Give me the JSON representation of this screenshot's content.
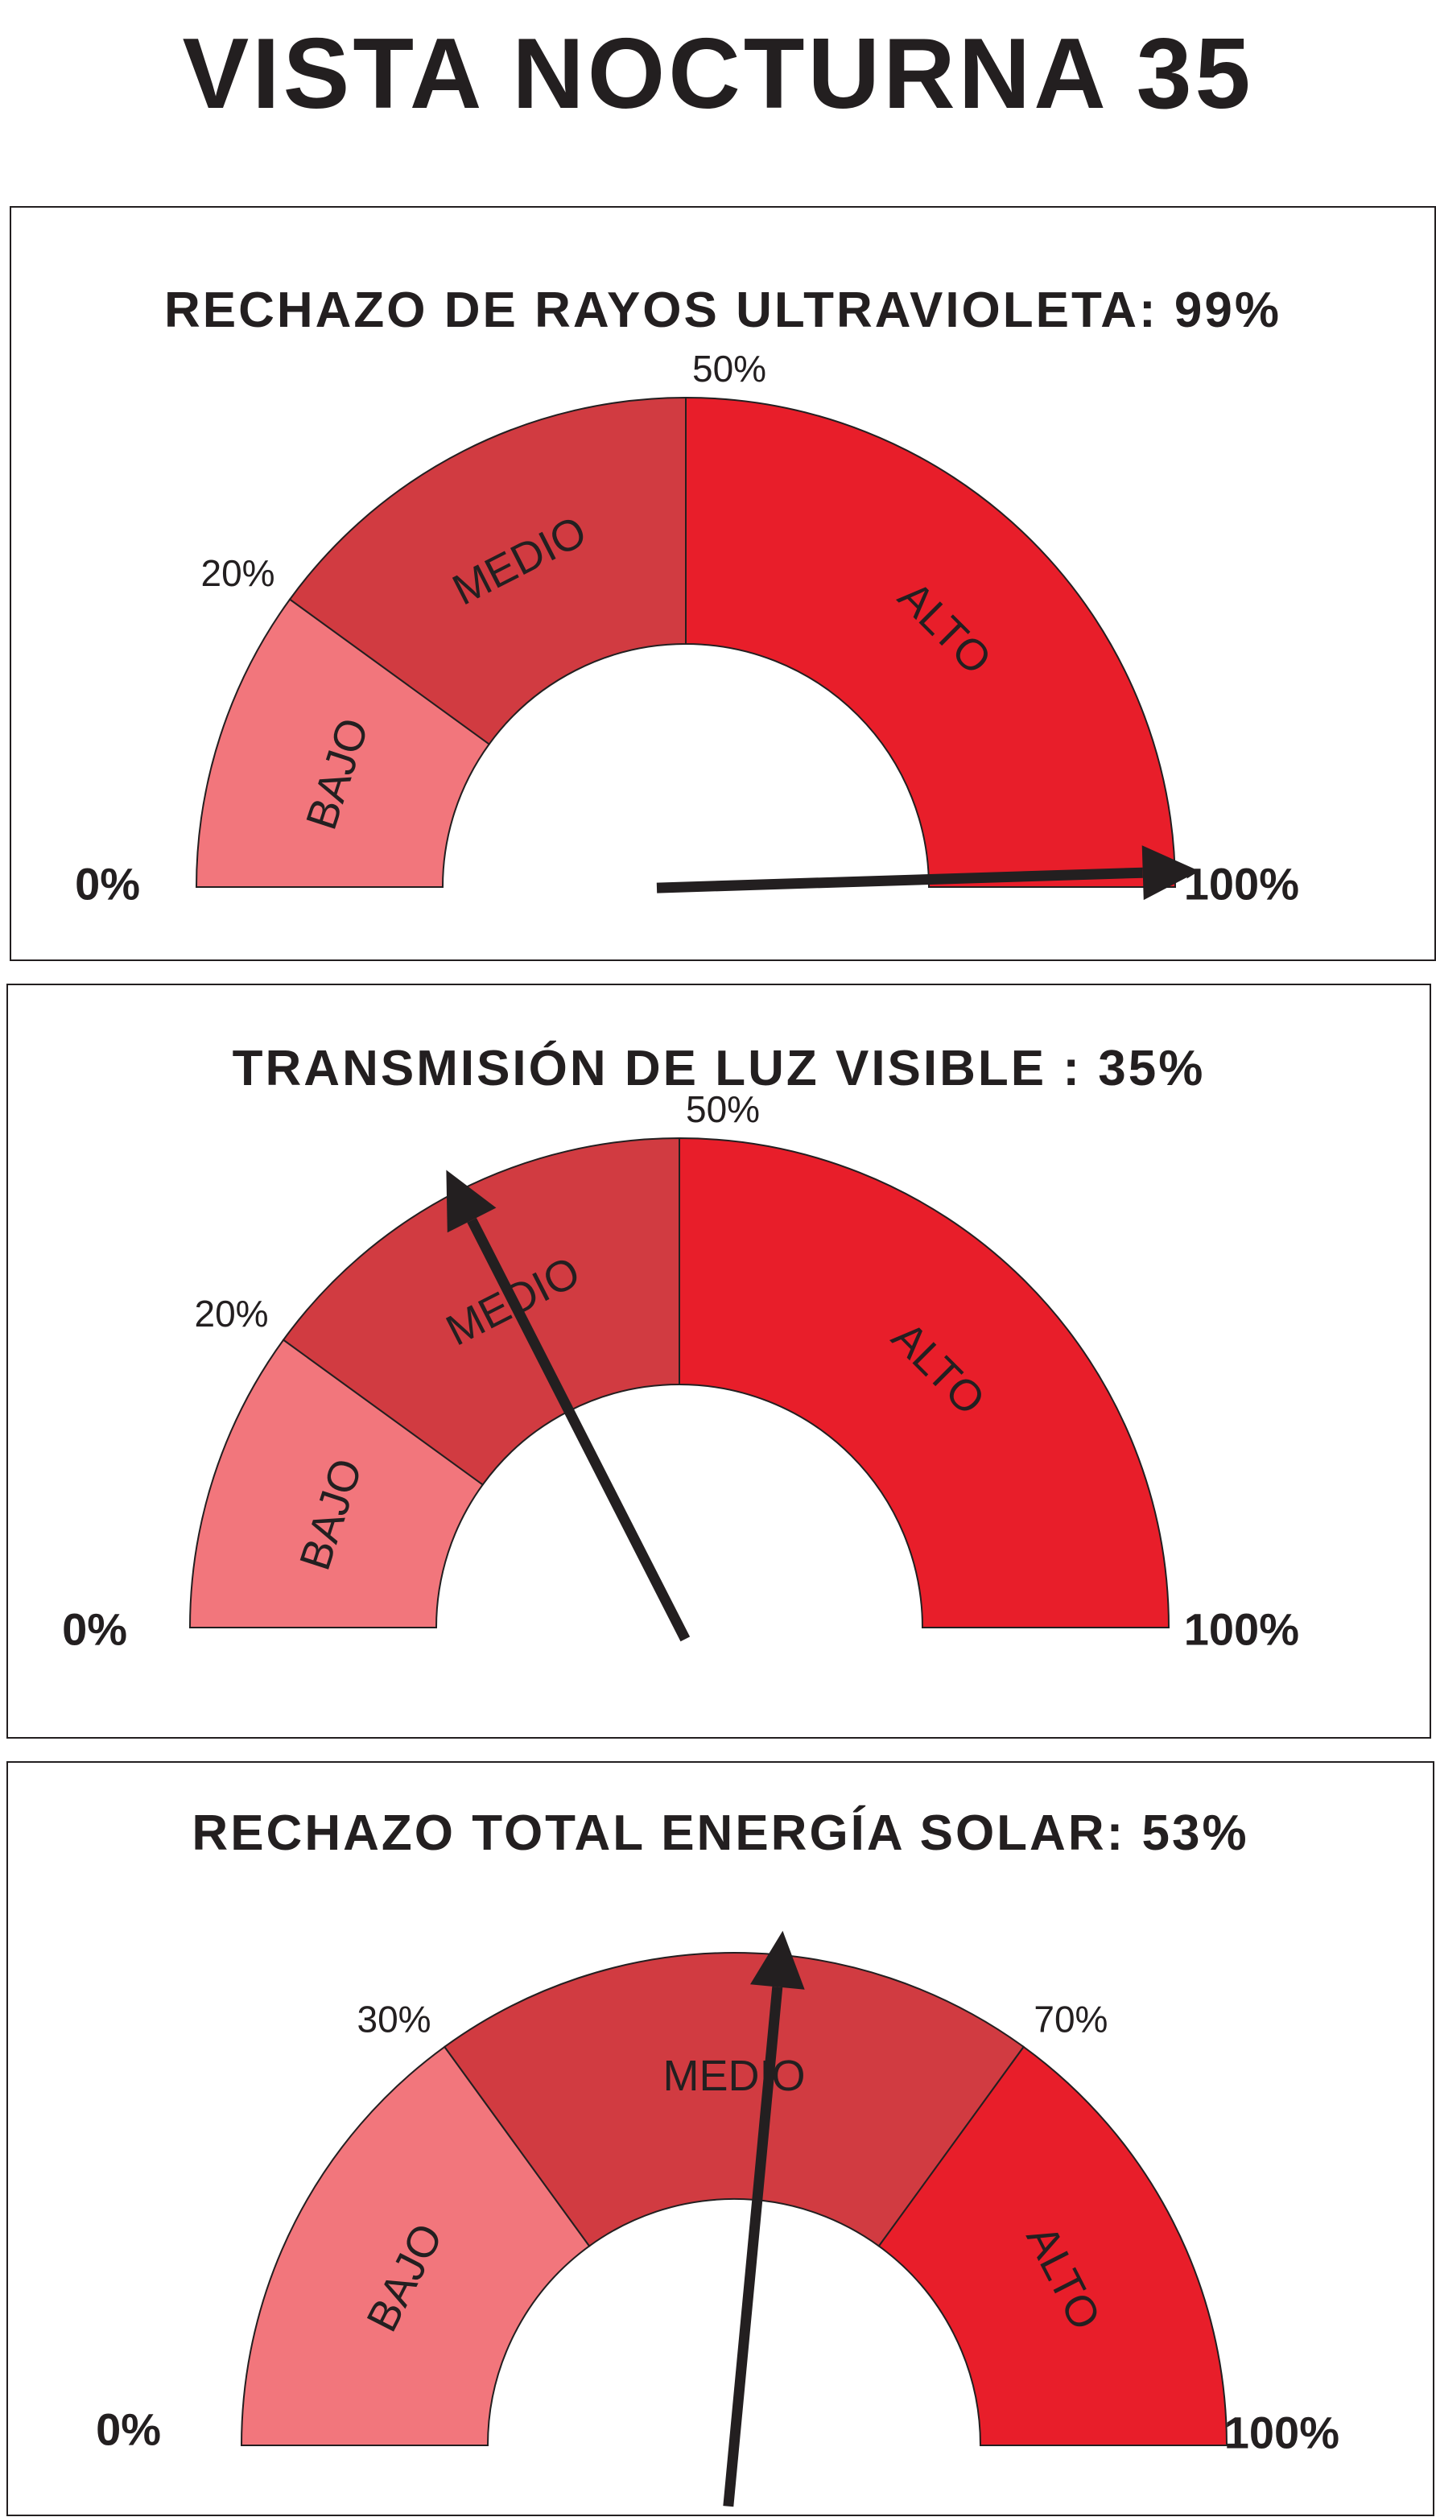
{
  "page": {
    "title": "VISTA NOCTURNA 35"
  },
  "colors": {
    "low": "#f2767c",
    "mid": "#d13b41",
    "high": "#e81e2a",
    "needle": "#231f20",
    "outline": "#231f20"
  },
  "gauges": [
    {
      "title": "RECHAZO DE RAYOS ULTRAVIOLETA: 99%",
      "value": 99,
      "min_label": "0%",
      "max_label": "100%",
      "segments": [
        {
          "label": "BAJO",
          "from": 0,
          "to": 20
        },
        {
          "label": "MEDIO",
          "from": 20,
          "to": 50
        },
        {
          "label": "ALTO",
          "from": 50,
          "to": 100
        }
      ],
      "ticks": [
        {
          "label": "20%",
          "value": 20
        },
        {
          "label": "50%",
          "value": 50
        }
      ]
    },
    {
      "title": "TRANSMISIÓN DE LUZ VISIBLE : 35%",
      "value": 35,
      "min_label": "0%",
      "max_label": "100%",
      "segments": [
        {
          "label": "BAJO",
          "from": 0,
          "to": 20
        },
        {
          "label": "MEDIO",
          "from": 20,
          "to": 50
        },
        {
          "label": "ALTO",
          "from": 50,
          "to": 100
        }
      ],
      "ticks": [
        {
          "label": "20%",
          "value": 20
        },
        {
          "label": "50%",
          "value": 50
        }
      ]
    },
    {
      "title": "RECHAZO TOTAL ENERGÍA SOLAR: 53%",
      "value": 53,
      "min_label": "0%",
      "max_label": "100%",
      "segments": [
        {
          "label": "BAJO",
          "from": 0,
          "to": 30
        },
        {
          "label": "MEDIO",
          "from": 30,
          "to": 70
        },
        {
          "label": "ALTO",
          "from": 70,
          "to": 100
        }
      ],
      "ticks": [
        {
          "label": "30%",
          "value": 30
        },
        {
          "label": "70%",
          "value": 70
        }
      ]
    }
  ]
}
